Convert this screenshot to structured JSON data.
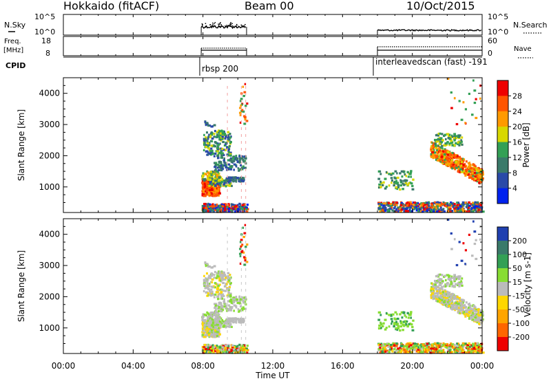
{
  "header": {
    "station": "Hokkaido (fitACF)",
    "beam": "Beam 00",
    "date": "10/Oct/2015"
  },
  "panel_labels": {
    "nsky": "N.Sky",
    "nsearch": "N.Search",
    "freq_line1": "Freq.",
    "freq_line2": "[MHz]",
    "nave": "Nave",
    "cpid": "CPID",
    "nsky_ticks": [
      "10^5",
      "10^0"
    ],
    "nsearch_ticks": [
      "10^5",
      "10^0"
    ],
    "freq_ticks": [
      "18",
      "8"
    ],
    "nave_ticks": [
      "60",
      "0"
    ],
    "cpid_run1": "rbsp 200",
    "cpid_run2": "interleavedscan (fast) -191"
  },
  "chart_data": [
    {
      "type": "heatmap",
      "name": "power",
      "ylabel": "Slant Range [km]",
      "y_ticks": [
        1000,
        2000,
        3000,
        4000
      ],
      "ylim": [
        180,
        4500
      ],
      "colorbar_label": "Power [dB]",
      "colorbar_ticks": [
        4,
        8,
        12,
        16,
        20,
        24,
        28
      ],
      "colorbar_range": [
        0,
        32
      ],
      "colors": [
        "#0022ee",
        "#2a4aa8",
        "#3a7a6a",
        "#33a055",
        "#d8d800",
        "#ff9a00",
        "#ff5500",
        "#ee0000"
      ]
    },
    {
      "type": "heatmap",
      "name": "velocity",
      "ylabel": "Slant Range [km]",
      "y_ticks": [
        1000,
        2000,
        3000,
        4000
      ],
      "ylim": [
        180,
        4500
      ],
      "colorbar_label": "Velocity [m s-1]",
      "colorbar_ticks": [
        200,
        100,
        50,
        15,
        -15,
        -50,
        -100,
        -200
      ],
      "colors": [
        "#2040b0",
        "#3a7a6a",
        "#33a055",
        "#88dd33",
        "#bbbbbb",
        "#ffd700",
        "#ffa500",
        "#ff6600",
        "#ee0000"
      ]
    }
  ],
  "xaxis": {
    "label": "Time UT",
    "ticks": [
      "00:00",
      "04:00",
      "08:00",
      "12:00",
      "16:00",
      "20:00",
      "00:00"
    ],
    "xlim_hours": [
      0,
      24
    ]
  }
}
